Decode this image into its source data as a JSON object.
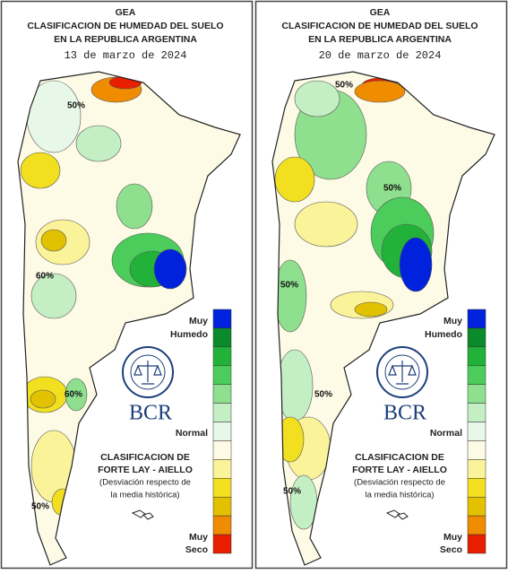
{
  "legend_colors": [
    "#0022dd",
    "#0a8a2a",
    "#22b23a",
    "#4ccc5a",
    "#8ee08e",
    "#c4eec4",
    "#e8f8e8",
    "#fdfbe6",
    "#fbf39a",
    "#f2e020",
    "#e2c200",
    "#f08c00",
    "#e81e00"
  ],
  "panels": [
    {
      "title_lines": [
        "GEA",
        "CLASIFICACION DE HUMEDAD DEL SUELO",
        "EN LA REPUBLICA ARGENTINA"
      ],
      "date": "13 de marzo de 2024",
      "contour_labels": [
        "50%",
        "60%",
        "60%",
        "50%"
      ],
      "legend": {
        "top": [
          "Muy",
          "Humedo"
        ],
        "middle": "Normal",
        "bottom": [
          "Muy",
          "Seco"
        ]
      },
      "logo": "BCR",
      "classification": [
        "CLASIFICACION DE",
        "FORTE LAY - AIELLO",
        "(Desviación respecto de",
        "la media histórica)"
      ]
    },
    {
      "title_lines": [
        "GEA",
        "CLASIFICACION DE HUMEDAD DEL SUELO",
        "EN LA REPUBLICA ARGENTINA"
      ],
      "date": "20 de marzo de 2024",
      "contour_labels": [
        "50%",
        "50%",
        "50%",
        "50%",
        "50%"
      ],
      "legend": {
        "top": [
          "Muy",
          "Humedo"
        ],
        "middle": "Normal",
        "bottom": [
          "Muy",
          "Seco"
        ]
      },
      "logo": "BCR",
      "classification": [
        "CLASIFICACION DE",
        "FORTE LAY - AIELLO",
        "(Desviación respecto de",
        "la media histórica)"
      ]
    }
  ]
}
